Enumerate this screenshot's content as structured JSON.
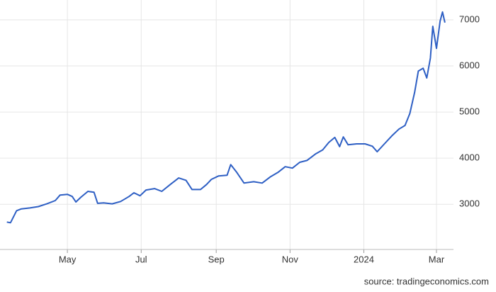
{
  "chart_data": {
    "type": "line",
    "source": "source: tradingeconomics.com",
    "x": [
      "2023-03-12",
      "2023-03-15",
      "2023-03-20",
      "2023-03-24",
      "2023-03-31",
      "2023-04-07",
      "2023-04-14",
      "2023-04-21",
      "2023-04-25",
      "2023-05-01",
      "2023-05-05",
      "2023-05-08",
      "2023-05-12",
      "2023-05-18",
      "2023-05-23",
      "2023-05-26",
      "2023-05-31",
      "2023-06-07",
      "2023-06-14",
      "2023-06-21",
      "2023-06-25",
      "2023-06-30",
      "2023-07-05",
      "2023-07-12",
      "2023-07-18",
      "2023-07-25",
      "2023-08-01",
      "2023-08-07",
      "2023-08-12",
      "2023-08-19",
      "2023-08-24",
      "2023-08-28",
      "2023-09-03",
      "2023-09-10",
      "2023-09-13",
      "2023-09-18",
      "2023-09-24",
      "2023-10-02",
      "2023-10-09",
      "2023-10-16",
      "2023-10-22",
      "2023-10-28",
      "2023-11-03",
      "2023-11-09",
      "2023-11-15",
      "2023-11-22",
      "2023-11-28",
      "2023-12-03",
      "2023-12-08",
      "2023-12-12",
      "2023-12-15",
      "2023-12-19",
      "2023-12-26",
      "2024-01-02",
      "2024-01-08",
      "2024-01-12",
      "2024-01-18",
      "2024-01-24",
      "2024-01-30",
      "2024-02-04",
      "2024-02-08",
      "2024-02-12",
      "2024-02-15",
      "2024-02-19",
      "2024-02-22",
      "2024-02-25",
      "2024-02-27",
      "2024-03-01",
      "2024-03-04",
      "2024-03-06",
      "2024-03-08"
    ],
    "series": [
      {
        "color": "#2e5fc4",
        "values": [
          2615,
          2600,
          2860,
          2900,
          2920,
          2950,
          3010,
          3080,
          3200,
          3215,
          3170,
          3050,
          3150,
          3280,
          3260,
          3020,
          3030,
          3010,
          3060,
          3170,
          3250,
          3185,
          3310,
          3340,
          3280,
          3430,
          3570,
          3520,
          3320,
          3320,
          3430,
          3540,
          3615,
          3630,
          3860,
          3690,
          3460,
          3490,
          3460,
          3600,
          3690,
          3815,
          3785,
          3910,
          3950,
          4090,
          4180,
          4340,
          4450,
          4250,
          4460,
          4290,
          4310,
          4310,
          4260,
          4140,
          4310,
          4480,
          4630,
          4710,
          4970,
          5430,
          5890,
          5950,
          5740,
          6170,
          6860,
          6380,
          6970,
          7170,
          6940
        ]
      }
    ],
    "xlim": [
      "2023-03-11",
      "2024-03-18"
    ],
    "xticks": [
      {
        "value": "2023-05-01",
        "label": "May"
      },
      {
        "value": "2023-07-01",
        "label": "Jul"
      },
      {
        "value": "2023-09-01",
        "label": "Sep"
      },
      {
        "value": "2023-11-01",
        "label": "Nov"
      },
      {
        "value": "2024-01-01",
        "label": "2024"
      },
      {
        "value": "2024-03-01",
        "label": "Mar"
      }
    ],
    "ylim": [
      2020,
      7430
    ],
    "yticks": [
      3000,
      4000,
      5000,
      6000,
      7000
    ],
    "grid": true
  }
}
